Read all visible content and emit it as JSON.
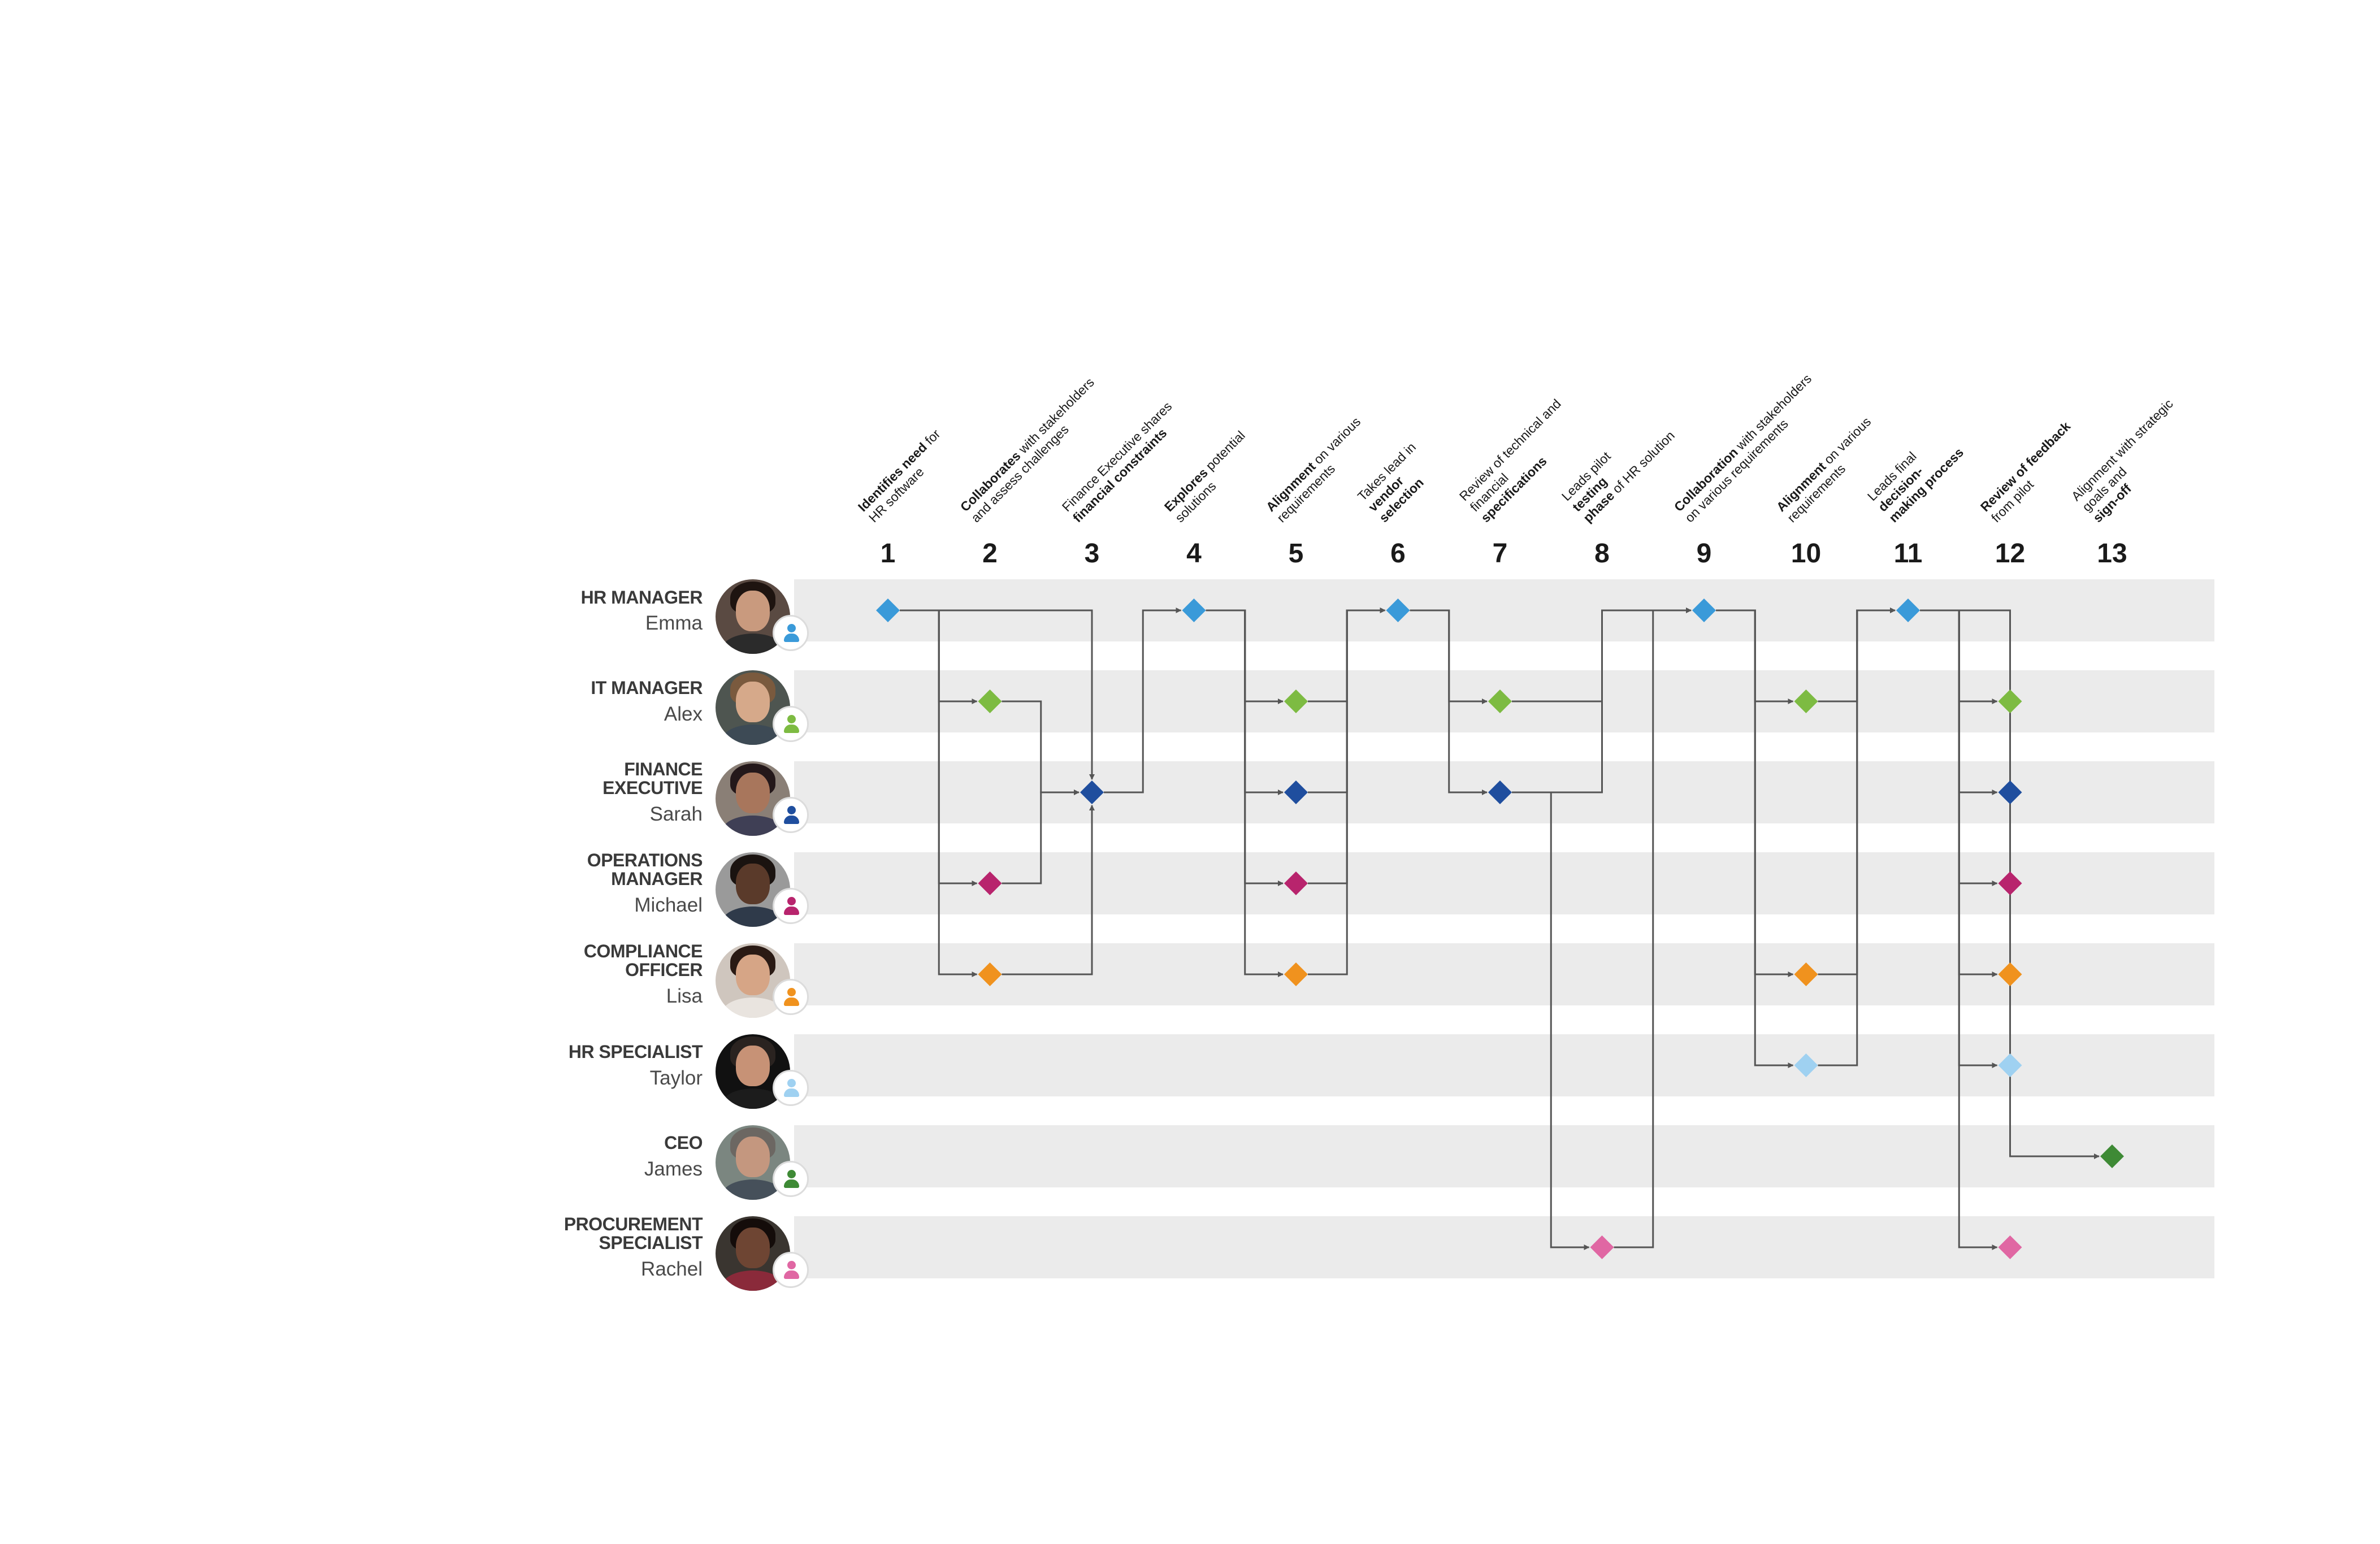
{
  "colors": {
    "lane_bg": "#ebebeb",
    "connector": "#555555",
    "hr_manager": "#3a9ad9",
    "it_manager": "#7dbb42",
    "finance_executive": "#1f4e9e",
    "operations_manager": "#b8246d",
    "compliance_officer": "#f0921e",
    "hr_specialist": "#9fd1f1",
    "ceo": "#3e8a35",
    "procurement_specialist": "#e067a3"
  },
  "people": [
    {
      "role": "HR MANAGER",
      "name": "Emma",
      "color": "#3a9ad9",
      "icon": "user-icon"
    },
    {
      "role": "IT MANAGER",
      "name": "Alex",
      "color": "#7dbb42",
      "icon": "user-icon"
    },
    {
      "role": "FINANCE EXECUTIVE",
      "name": "Sarah",
      "color": "#1f4e9e",
      "icon": "user-icon"
    },
    {
      "role": "OPERATIONS MANAGER",
      "name": "Michael",
      "color": "#b8246d",
      "icon": "user-icon"
    },
    {
      "role": "COMPLIANCE OFFICER",
      "name": "Lisa",
      "color": "#f0921e",
      "icon": "user-icon"
    },
    {
      "role": "HR SPECIALIST",
      "name": "Taylor",
      "color": "#9fd1f1",
      "icon": "user-icon"
    },
    {
      "role": "CEO",
      "name": "James",
      "color": "#3e8a35",
      "icon": "user-icon"
    },
    {
      "role": "PROCUREMENT SPECIALIST",
      "name": "Rachel",
      "color": "#e067a3",
      "icon": "user-icon"
    }
  ],
  "steps": [
    {
      "number": "1",
      "label": [
        [
          "Identifies need",
          " for"
        ],
        [
          "",
          "HR software"
        ]
      ]
    },
    {
      "number": "2",
      "label": [
        [
          "Collaborates",
          " with stakeholders"
        ],
        [
          "",
          "and assess challenges"
        ]
      ]
    },
    {
      "number": "3",
      "label": [
        [
          "",
          "Finance Executive shares"
        ],
        [
          "financial constraints",
          ""
        ]
      ]
    },
    {
      "number": "4",
      "label": [
        [
          "Explores",
          " potential"
        ],
        [
          "",
          "solutions"
        ]
      ]
    },
    {
      "number": "5",
      "label": [
        [
          "Alignment",
          " on various"
        ],
        [
          "",
          "requirements"
        ]
      ]
    },
    {
      "number": "6",
      "label": [
        [
          "",
          "Takes lead in "
        ],
        [
          "vendor",
          ""
        ],
        [
          "selection",
          ""
        ]
      ]
    },
    {
      "number": "7",
      "label": [
        [
          "",
          "Review of technical and"
        ],
        [
          "",
          "financial "
        ],
        [
          "specifications",
          ""
        ]
      ]
    },
    {
      "number": "8",
      "label": [
        [
          "",
          "Leads pilot "
        ],
        [
          "testing",
          ""
        ],
        [
          "phase",
          " of HR solution"
        ]
      ]
    },
    {
      "number": "9",
      "label": [
        [
          "Collaboration",
          " with stakeholders"
        ],
        [
          "",
          "on various requirements"
        ]
      ]
    },
    {
      "number": "10",
      "label": [
        [
          "Alignment",
          " on various"
        ],
        [
          "",
          "requirements"
        ]
      ]
    },
    {
      "number": "11",
      "label": [
        [
          "",
          "Leads final "
        ],
        [
          "decision-",
          ""
        ],
        [
          "making process",
          ""
        ]
      ]
    },
    {
      "number": "12",
      "label": [
        [
          "Review of feedback",
          ""
        ],
        [
          "",
          "from pilot"
        ]
      ]
    },
    {
      "number": "13",
      "label": [
        [
          "",
          "Alignment with strategic"
        ],
        [
          "",
          "goals and "
        ],
        [
          "sign-off",
          ""
        ]
      ]
    }
  ],
  "nodes": [
    {
      "step": 1,
      "lane": 0
    },
    {
      "step": 2,
      "lane": 1
    },
    {
      "step": 2,
      "lane": 3
    },
    {
      "step": 2,
      "lane": 4
    },
    {
      "step": 3,
      "lane": 2
    },
    {
      "step": 4,
      "lane": 0
    },
    {
      "step": 5,
      "lane": 1
    },
    {
      "step": 5,
      "lane": 2
    },
    {
      "step": 5,
      "lane": 3
    },
    {
      "step": 5,
      "lane": 4
    },
    {
      "step": 6,
      "lane": 0
    },
    {
      "step": 7,
      "lane": 1
    },
    {
      "step": 7,
      "lane": 2
    },
    {
      "step": 8,
      "lane": 7
    },
    {
      "step": 9,
      "lane": 0
    },
    {
      "step": 10,
      "lane": 1
    },
    {
      "step": 10,
      "lane": 4
    },
    {
      "step": 10,
      "lane": 5
    },
    {
      "step": 11,
      "lane": 0
    },
    {
      "step": 12,
      "lane": 1
    },
    {
      "step": 12,
      "lane": 2
    },
    {
      "step": 12,
      "lane": 3
    },
    {
      "step": 12,
      "lane": 4
    },
    {
      "step": 12,
      "lane": 5
    },
    {
      "step": 12,
      "lane": 7
    },
    {
      "step": 13,
      "lane": 6
    }
  ],
  "edges": [
    {
      "from": [
        1,
        0
      ],
      "to": [
        2,
        1
      ]
    },
    {
      "from": [
        1,
        0
      ],
      "to": [
        2,
        3
      ]
    },
    {
      "from": [
        1,
        0
      ],
      "to": [
        2,
        4
      ]
    },
    {
      "from": [
        1,
        0
      ],
      "to": [
        3,
        2
      ]
    },
    {
      "from": [
        2,
        1
      ],
      "to": [
        3,
        2
      ]
    },
    {
      "from": [
        2,
        3
      ],
      "to": [
        3,
        2
      ]
    },
    {
      "from": [
        2,
        4
      ],
      "to": [
        3,
        2
      ]
    },
    {
      "from": [
        3,
        2
      ],
      "to": [
        4,
        0
      ]
    },
    {
      "from": [
        4,
        0
      ],
      "to": [
        5,
        1
      ]
    },
    {
      "from": [
        4,
        0
      ],
      "to": [
        5,
        2
      ]
    },
    {
      "from": [
        4,
        0
      ],
      "to": [
        5,
        3
      ]
    },
    {
      "from": [
        4,
        0
      ],
      "to": [
        5,
        4
      ]
    },
    {
      "from": [
        5,
        1
      ],
      "to": [
        6,
        0
      ]
    },
    {
      "from": [
        5,
        2
      ],
      "to": [
        6,
        0
      ]
    },
    {
      "from": [
        5,
        3
      ],
      "to": [
        6,
        0
      ]
    },
    {
      "from": [
        5,
        4
      ],
      "to": [
        6,
        0
      ]
    },
    {
      "from": [
        6,
        0
      ],
      "to": [
        7,
        1
      ]
    },
    {
      "from": [
        6,
        0
      ],
      "to": [
        7,
        2
      ]
    },
    {
      "from": [
        7,
        2
      ],
      "to": [
        8,
        7
      ]
    },
    {
      "from": [
        7,
        1
      ],
      "to": [
        9,
        0
      ]
    },
    {
      "from": [
        7,
        2
      ],
      "to": [
        9,
        0
      ]
    },
    {
      "from": [
        8,
        7
      ],
      "to": [
        9,
        0
      ]
    },
    {
      "from": [
        9,
        0
      ],
      "to": [
        10,
        1
      ]
    },
    {
      "from": [
        9,
        0
      ],
      "to": [
        10,
        4
      ]
    },
    {
      "from": [
        9,
        0
      ],
      "to": [
        10,
        5
      ]
    },
    {
      "from": [
        10,
        1
      ],
      "to": [
        11,
        0
      ]
    },
    {
      "from": [
        10,
        4
      ],
      "to": [
        11,
        0
      ]
    },
    {
      "from": [
        10,
        5
      ],
      "to": [
        11,
        0
      ]
    },
    {
      "from": [
        11,
        0
      ],
      "to": [
        12,
        1
      ]
    },
    {
      "from": [
        11,
        0
      ],
      "to": [
        12,
        2
      ]
    },
    {
      "from": [
        11,
        0
      ],
      "to": [
        12,
        3
      ]
    },
    {
      "from": [
        11,
        0
      ],
      "to": [
        12,
        4
      ]
    },
    {
      "from": [
        11,
        0
      ],
      "to": [
        12,
        5
      ]
    },
    {
      "from": [
        11,
        0
      ],
      "to": [
        12,
        7
      ]
    },
    {
      "from": [
        11,
        0
      ],
      "to": [
        13,
        6
      ]
    }
  ]
}
